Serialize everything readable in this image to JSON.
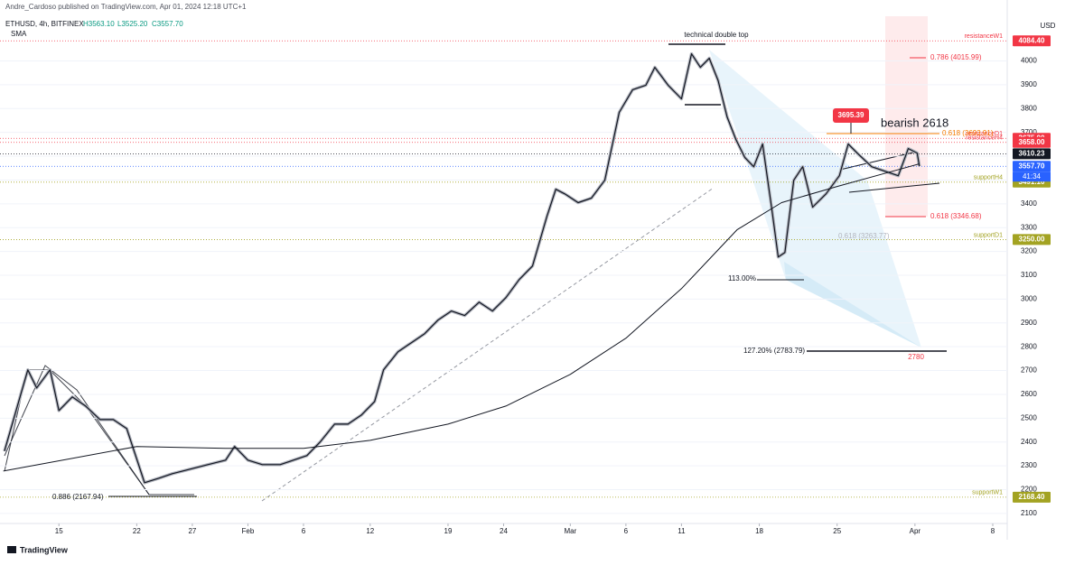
{
  "header": {
    "byline": "Andre_Cardoso published on TradingView.com, Apr 01, 2024 12:18 UTC+1",
    "symbol": "ETHUSD, 4h, BITFINEX",
    "high": "H3563.10",
    "low": "L3525.20",
    "close": "C3557.70",
    "indicator": "SMA",
    "currency": "USD",
    "countdown": "41:34"
  },
  "footer": {
    "brand": "TradingView"
  },
  "chart_data": {
    "type": "line",
    "ylim": [
      2020,
      4180
    ],
    "yticks": [
      2100,
      2200,
      2300,
      2400,
      2500,
      2600,
      2700,
      2800,
      2900,
      3000,
      3100,
      3200,
      3300,
      3400,
      3500,
      3600,
      3700,
      3800,
      3900,
      4000
    ],
    "xlim": [
      9.7,
      100.3
    ],
    "xticks": [
      {
        "value": 15,
        "label": "15"
      },
      {
        "value": 22,
        "label": "22"
      },
      {
        "value": 27,
        "label": "27"
      },
      {
        "value": 32,
        "label": "Feb"
      },
      {
        "value": 37,
        "label": "6"
      },
      {
        "value": 43,
        "label": "12"
      },
      {
        "value": 50,
        "label": "19"
      },
      {
        "value": 55,
        "label": "24"
      },
      {
        "value": 61,
        "label": "Mar"
      },
      {
        "value": 66,
        "label": "6"
      },
      {
        "value": 71,
        "label": "11"
      },
      {
        "value": 78,
        "label": "18"
      },
      {
        "value": 85,
        "label": "25"
      },
      {
        "value": 92,
        "label": "Apr"
      },
      {
        "value": 99,
        "label": "8"
      }
    ],
    "series": [
      {
        "name": "ETHUSD",
        "color": "#131722",
        "x": [
          10.1,
          12.2,
          13,
          14.2,
          15,
          16.2,
          17.4,
          18.7,
          19.9,
          21.1,
          22.7,
          24,
          25.2,
          26.8,
          28.4,
          30,
          30.8,
          32,
          33.3,
          34.9,
          36.1,
          37.3,
          38.5,
          39.8,
          41,
          42.2,
          43.4,
          44.2,
          45.5,
          46.7,
          47.9,
          49.1,
          50.3,
          51.5,
          52.8,
          54,
          55.2,
          56.4,
          57.6,
          58.9,
          59.7,
          60.5,
          61.7,
          62.9,
          64.1,
          65.4,
          66.6,
          67.8,
          68.6,
          69.8,
          71,
          71.9,
          72.7,
          73.5,
          74.3,
          75.1,
          75.9,
          76.7,
          77.5,
          78.3,
          79.1,
          79.7,
          80.3,
          81.1,
          81.9,
          82.8,
          84,
          85.2,
          86,
          86.8,
          88.1,
          89.3,
          90.5,
          91.4,
          92.2,
          92.4
        ],
        "values": [
          2362,
          2703,
          2627,
          2703,
          2532,
          2589,
          2551,
          2494,
          2494,
          2456,
          2229,
          2248,
          2267,
          2286,
          2305,
          2324,
          2381,
          2324,
          2305,
          2305,
          2324,
          2343,
          2400,
          2475,
          2475,
          2513,
          2570,
          2703,
          2779,
          2817,
          2855,
          2912,
          2950,
          2931,
          2987,
          2950,
          3006,
          3082,
          3139,
          3348,
          3461,
          3442,
          3405,
          3424,
          3499,
          3784,
          3879,
          3898,
          3973,
          3898,
          3841,
          4030,
          3973,
          4011,
          3917,
          3765,
          3670,
          3594,
          3556,
          3651,
          3386,
          3177,
          3196,
          3499,
          3556,
          3386,
          3442,
          3518,
          3651,
          3613,
          3556,
          3537,
          3518,
          3632,
          3613,
          3558
        ]
      },
      {
        "name": "SMA",
        "color": "#131722",
        "x": [
          10,
          22,
          30,
          37,
          43,
          50,
          55.2,
          61,
          66,
          71,
          76,
          80,
          85,
          90,
          92.4
        ],
        "values": [
          2278,
          2381,
          2373,
          2373,
          2407,
          2475,
          2551,
          2684,
          2836,
          3044,
          3291,
          3405,
          3473,
          3537,
          3568
        ]
      }
    ],
    "levels": [
      {
        "name": "resistanceW1",
        "value": 4084.4,
        "label": "4084.40",
        "color": "#f23645"
      },
      {
        "name": "resistanceD1",
        "value": 3675,
        "label": "3675.00",
        "color": "#f23645"
      },
      {
        "name": "resistanceH4",
        "value": 3658,
        "label": "3658.00",
        "color": "#f23645"
      },
      {
        "value": 3610.23,
        "label": "3610.23",
        "color": "#131722"
      },
      {
        "value": 3557.7,
        "label": "3557.70",
        "color": "#2962ff"
      },
      {
        "name": "supportH4",
        "value": 3491.1,
        "label": "3491.10",
        "color": "#a3a322"
      },
      {
        "name": "supportD1",
        "value": 3250,
        "label": "3250.00",
        "color": "#a3a322"
      },
      {
        "name": "supportW1",
        "value": 2168.4,
        "label": "2168.40",
        "color": "#a3a322"
      }
    ],
    "annotations": [
      "technical double top",
      "bearish 2618",
      "3695.39",
      "0.786 (4015.99)",
      "0.618 (3693.91)",
      "0.618 (3346.68)",
      "0.618 (3263.77)",
      "113.00%",
      "127.20% (2783.79)",
      "2780",
      "0.886 (2167.94)"
    ]
  }
}
